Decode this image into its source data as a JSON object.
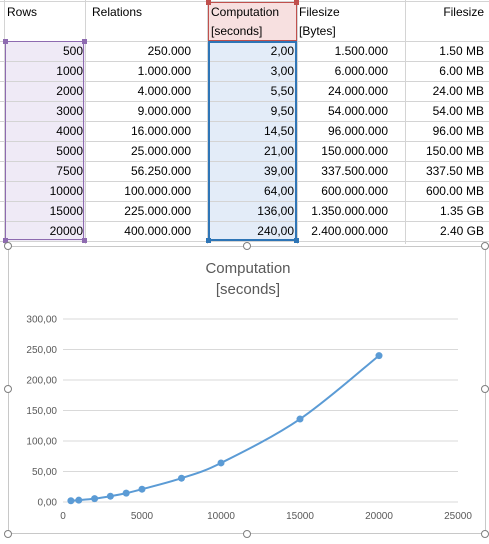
{
  "sheet": {
    "headers": {
      "rows": "Rows",
      "relations": "Relations",
      "computation_line1": "Computation",
      "computation_line2": "[seconds]",
      "filesize_bytes_line1": "Filesize",
      "filesize_bytes_line2": "[Bytes]",
      "filesize_readable": "Filesize"
    },
    "rows": [
      {
        "rows": "500",
        "relations": "250.000",
        "computation": "2,00",
        "bytes": "1.500.000",
        "size": "1.50 MB"
      },
      {
        "rows": "1000",
        "relations": "1.000.000",
        "computation": "3,00",
        "bytes": "6.000.000",
        "size": "6.00 MB"
      },
      {
        "rows": "2000",
        "relations": "4.000.000",
        "computation": "5,50",
        "bytes": "24.000.000",
        "size": "24.00 MB"
      },
      {
        "rows": "3000",
        "relations": "9.000.000",
        "computation": "9,50",
        "bytes": "54.000.000",
        "size": "54.00 MB"
      },
      {
        "rows": "4000",
        "relations": "16.000.000",
        "computation": "14,50",
        "bytes": "96.000.000",
        "size": "96.00 MB"
      },
      {
        "rows": "5000",
        "relations": "25.000.000",
        "computation": "21,00",
        "bytes": "150.000.000",
        "size": "150.00 MB"
      },
      {
        "rows": "7500",
        "relations": "56.250.000",
        "computation": "39,00",
        "bytes": "337.500.000",
        "size": "337.50 MB"
      },
      {
        "rows": "10000",
        "relations": "100.000.000",
        "computation": "64,00",
        "bytes": "600.000.000",
        "size": "600.00 MB"
      },
      {
        "rows": "15000",
        "relations": "225.000.000",
        "computation": "136,00",
        "bytes": "1.350.000.000",
        "size": "1.35 GB"
      },
      {
        "rows": "20000",
        "relations": "400.000.000",
        "computation": "240,00",
        "bytes": "2.400.000.000",
        "size": "2.40 GB"
      }
    ]
  },
  "chart_data": {
    "type": "scatter",
    "title_line1": "Computation",
    "title_line2": "[seconds]",
    "x": [
      500,
      1000,
      2000,
      3000,
      4000,
      5000,
      7500,
      10000,
      15000,
      20000
    ],
    "y": [
      2,
      3,
      5.5,
      9.5,
      14.5,
      21,
      39,
      64,
      136,
      240
    ],
    "xlim": [
      0,
      25000
    ],
    "ylim": [
      0,
      300
    ],
    "x_ticks": [
      0,
      5000,
      10000,
      15000,
      20000,
      25000
    ],
    "y_ticks": [
      0,
      50,
      100,
      150,
      200,
      250,
      300
    ],
    "x_tick_labels": [
      "0",
      "5000",
      "10000",
      "15000",
      "20000",
      "25000"
    ],
    "y_tick_labels": [
      "0,00",
      "50,00",
      "100,00",
      "150,00",
      "200,00",
      "250,00",
      "300,00"
    ],
    "grid": "horizontal",
    "legend": "none",
    "series_color": "#5b9bd5",
    "lines_smooth": true
  },
  "colors": {
    "selection_purple": "#8e6bb0",
    "selection_blue": "#2e75b6",
    "selection_red": "#c0504d",
    "gridline": "#d9d9d9"
  }
}
